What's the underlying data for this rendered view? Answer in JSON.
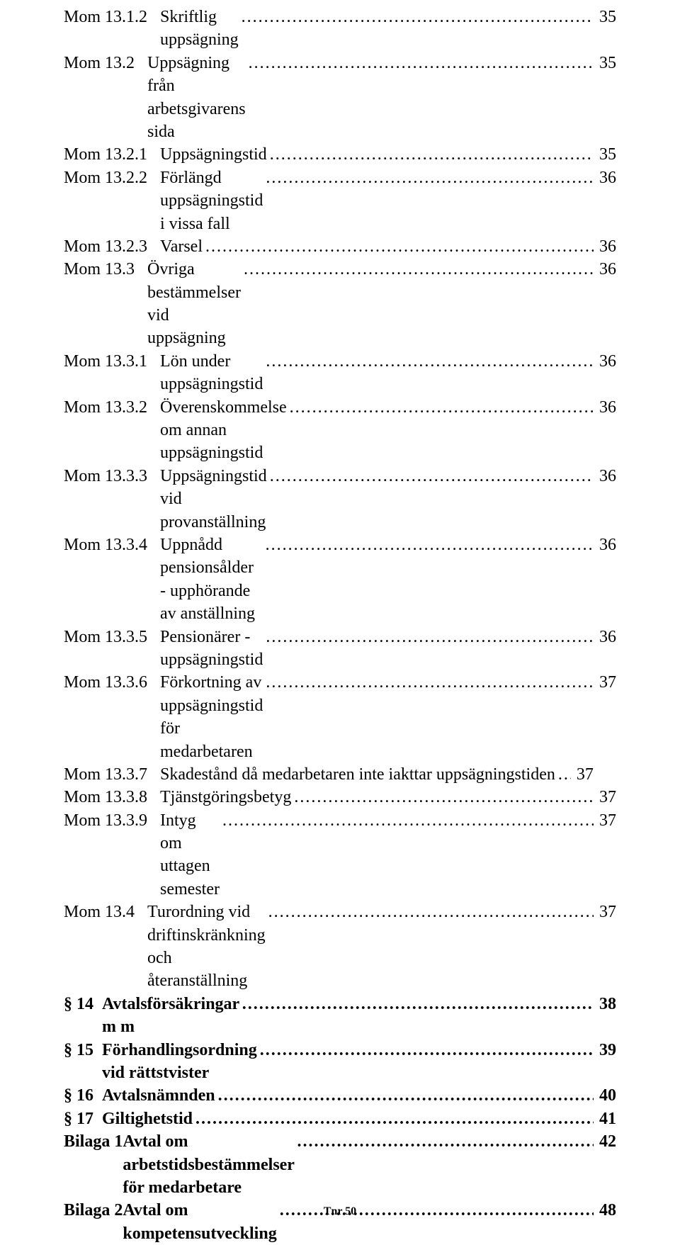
{
  "footer": "Tnr 50",
  "entries": [
    {
      "label": "Mom 13.1.2",
      "title": "Skriftlig uppsägning",
      "page": "35",
      "bold": false
    },
    {
      "label": "Mom 13.2",
      "title": "Uppsägning från arbetsgivarens sida",
      "page": "35",
      "bold": false
    },
    {
      "label": "Mom 13.2.1",
      "title": "Uppsägningstid",
      "page": "35",
      "bold": false
    },
    {
      "label": "Mom 13.2.2",
      "title": "Förlängd uppsägningstid i vissa fall",
      "page": "36",
      "bold": false
    },
    {
      "label": "Mom 13.2.3",
      "title": "Varsel",
      "page": "36",
      "bold": false
    },
    {
      "label": "Mom 13.3",
      "title": "Övriga bestämmelser vid uppsägning",
      "page": "36",
      "bold": false
    },
    {
      "label": "Mom 13.3.1",
      "title": "Lön under uppsägningstid",
      "page": "36",
      "bold": false
    },
    {
      "label": "Mom 13.3.2",
      "title": "Överenskommelse om annan uppsägningstid",
      "page": "36",
      "bold": false
    },
    {
      "label": "Mom 13.3.3",
      "title": "Uppsägningstid vid provanställning",
      "page": "36",
      "bold": false
    },
    {
      "label": "Mom 13.3.4",
      "title": "Uppnådd pensionsålder - upphörande av anställning",
      "page": "36",
      "bold": false
    },
    {
      "label": "Mom 13.3.5",
      "title": "Pensionärer - uppsägningstid",
      "page": "36",
      "bold": false
    },
    {
      "label": "Mom 13.3.6",
      "title": "Förkortning av uppsägningstid för medarbetaren",
      "page": "37",
      "bold": false
    },
    {
      "label": "Mom 13.3.7",
      "title": "Skadestånd då medarbetaren inte iakttar uppsägningstiden",
      "page": "37",
      "bold": false,
      "tight": true
    },
    {
      "label": "Mom 13.3.8",
      "title": "Tjänstgöringsbetyg",
      "page": "37",
      "bold": false
    },
    {
      "label": "Mom 13.3.9",
      "title": "Intyg om uttagen semester",
      "page": "37",
      "bold": false
    },
    {
      "label": "Mom 13.4",
      "title": "Turordning vid driftinskränkning och återanställning",
      "page": "37",
      "bold": false
    },
    {
      "label": "§ 14",
      "title": "Avtalsförsäkringar m m",
      "page": "38",
      "bold": true
    },
    {
      "label": "§ 15",
      "title": "Förhandlingsordning vid rättstvister",
      "page": "39",
      "bold": true
    },
    {
      "label": "§ 16",
      "title": "Avtalsnämnden",
      "page": "40",
      "bold": true
    },
    {
      "label": "§ 17",
      "title": "Giltighetstid",
      "page": "41",
      "bold": true
    },
    {
      "label": "Bilaga 1",
      "title": "Avtal om arbetstidsbestämmelser för medarbetare",
      "page": "42",
      "bold": true,
      "nolabelspace": true
    },
    {
      "label": "Bilaga 2",
      "title": "Avtal om kompetensutveckling",
      "page": "48",
      "bold": true,
      "nolabelspace": true
    }
  ]
}
